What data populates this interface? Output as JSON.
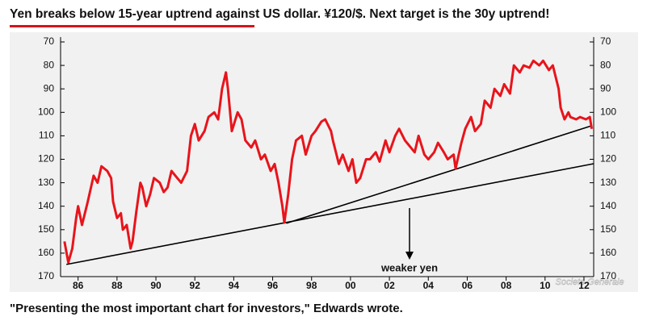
{
  "chart_data": {
    "type": "line",
    "title": "Yen breaks below 15-year uptrend against US dollar. ¥120/$. Next target is the 30y uptrend!",
    "caption": "\"Presenting the most important chart for investors,\" Edwards wrote.",
    "source": "Societe Generale",
    "annotations": [
      "weaker yen"
    ],
    "xlim": [
      1985.1,
      2012.5
    ],
    "xticks": [
      {
        "value": 1986,
        "label": "86"
      },
      {
        "value": 1988,
        "label": "88"
      },
      {
        "value": 1990,
        "label": "90"
      },
      {
        "value": 1992,
        "label": "92"
      },
      {
        "value": 1994,
        "label": "94"
      },
      {
        "value": 1996,
        "label": "96"
      },
      {
        "value": 1998,
        "label": "98"
      },
      {
        "value": 2000,
        "label": "00"
      },
      {
        "value": 2002,
        "label": "02"
      },
      {
        "value": 2004,
        "label": "04"
      },
      {
        "value": 2006,
        "label": "06"
      },
      {
        "value": 2008,
        "label": "08"
      },
      {
        "value": 2010,
        "label": "10"
      },
      {
        "value": 2012,
        "label": "12"
      }
    ],
    "ylim": [
      170,
      70
    ],
    "yticks": [
      70,
      80,
      90,
      100,
      110,
      120,
      130,
      140,
      150,
      160,
      170
    ],
    "y2lim": [
      170,
      70
    ],
    "y2ticks": [
      70,
      80,
      90,
      100,
      110,
      120,
      130,
      140,
      150,
      160,
      170
    ],
    "x": [
      1985.3,
      1985.5,
      1985.7,
      1985.9,
      1986.0,
      1986.2,
      1986.5,
      1986.8,
      1987.0,
      1987.2,
      1987.5,
      1987.7,
      1987.8,
      1988.0,
      1988.2,
      1988.3,
      1988.5,
      1988.7,
      1988.8,
      1989.0,
      1989.2,
      1989.3,
      1989.5,
      1989.7,
      1989.9,
      1990.2,
      1990.4,
      1990.6,
      1990.8,
      1991.1,
      1991.3,
      1991.6,
      1991.8,
      1992.0,
      1992.2,
      1992.5,
      1992.7,
      1993.0,
      1993.2,
      1993.4,
      1993.6,
      1993.7,
      1993.9,
      1994.2,
      1994.4,
      1994.6,
      1994.9,
      1995.1,
      1995.4,
      1995.6,
      1995.9,
      1996.1,
      1996.3,
      1996.5,
      1996.6,
      1996.8,
      1997.0,
      1997.2,
      1997.5,
      1997.7,
      1998.0,
      1998.2,
      1998.5,
      1998.7,
      1999.0,
      1999.1,
      1999.4,
      1999.6,
      1999.9,
      2000.1,
      2000.3,
      2000.5,
      2000.8,
      2001.0,
      2001.3,
      2001.5,
      2001.8,
      2002.0,
      2002.3,
      2002.5,
      2002.8,
      2003.0,
      2003.3,
      2003.5,
      2003.8,
      2004.0,
      2004.3,
      2004.5,
      2004.8,
      2005.0,
      2005.3,
      2005.4,
      2005.7,
      2005.9,
      2006.2,
      2006.4,
      2006.7,
      2006.9,
      2007.2,
      2007.4,
      2007.7,
      2007.9,
      2008.2,
      2008.4,
      2008.7,
      2008.9,
      2009.2,
      2009.4,
      2009.7,
      2009.9,
      2010.2,
      2010.4,
      2010.7,
      2010.8,
      2011.0,
      2011.2,
      2011.3,
      2011.6,
      2011.8,
      2012.1,
      2012.3,
      2012.4
    ],
    "series": [
      {
        "color": "#e8141b",
        "values": [
          155,
          164,
          158,
          145,
          140,
          148,
          138,
          127,
          130,
          123,
          125,
          128,
          138,
          145,
          143,
          150,
          148,
          158,
          155,
          142,
          130,
          132,
          140,
          135,
          128,
          130,
          134,
          132,
          125,
          128,
          130,
          125,
          110,
          105,
          112,
          108,
          102,
          100,
          103,
          90,
          83,
          90,
          108,
          100,
          103,
          112,
          115,
          112,
          120,
          118,
          125,
          122,
          130,
          140,
          147,
          135,
          120,
          112,
          110,
          118,
          110,
          108,
          104,
          103,
          108,
          112,
          122,
          118,
          125,
          120,
          130,
          128,
          120,
          120,
          117,
          121,
          112,
          117,
          110,
          107,
          112,
          114,
          117,
          110,
          118,
          120,
          117,
          113,
          117,
          120,
          118,
          124,
          113,
          107,
          102,
          108,
          105,
          95,
          98,
          90,
          93,
          88,
          92,
          80,
          83,
          80,
          81,
          78,
          80,
          78,
          82,
          80,
          90,
          98,
          103,
          100,
          102,
          103,
          102,
          103,
          102,
          107
        ]
      }
    ],
    "trendlines": [
      {
        "color": "#000000",
        "x": [
          1985.4,
          2012.5
        ],
        "values": [
          164.8,
          121.9
        ]
      },
      {
        "color": "#000000",
        "x": [
          1996.7,
          2012.4
        ],
        "values": [
          147.3,
          105.7
        ]
      }
    ]
  }
}
